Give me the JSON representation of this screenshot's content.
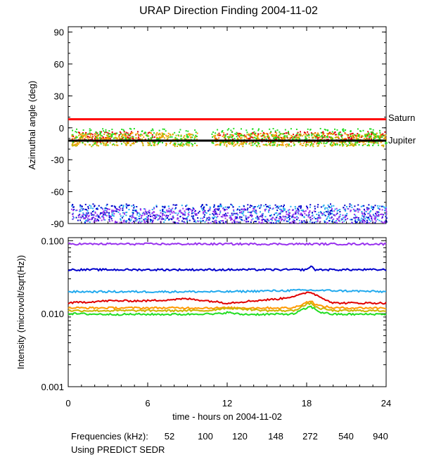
{
  "chart_data": [
    {
      "type": "scatter",
      "title": "URAP Direction Finding  2004-11-02",
      "ylabel": "Azimuthal angle (deg)",
      "xlim": [
        0,
        24
      ],
      "ylim": [
        -90,
        95
      ],
      "y_ticks": [
        90,
        60,
        30,
        0,
        -30,
        -60,
        -90
      ],
      "reference_lines": [
        {
          "name": "Saturn",
          "y": 8,
          "color": "#ff0000"
        },
        {
          "name": "Jupiter",
          "y": -12,
          "color": "#000000"
        }
      ],
      "series": [
        {
          "frequency_khz": 52,
          "color": "#e00000",
          "y_center": -8,
          "y_spread": 5,
          "segments": [
            [
              0.2,
              6.5
            ],
            [
              11,
              24
            ]
          ]
        },
        {
          "frequency_khz": 100,
          "color": "#ff9900",
          "y_center": -10,
          "y_spread": 6,
          "segments": [
            [
              0.2,
              24
            ]
          ]
        },
        {
          "frequency_khz": 120,
          "color": "#c8b400",
          "y_center": -11,
          "y_spread": 6,
          "segments": [
            [
              0.2,
              24
            ]
          ]
        },
        {
          "frequency_khz": 148,
          "color": "#22dd22",
          "y_center": -8,
          "y_spread": 8,
          "segments": [
            [
              0.2,
              24
            ]
          ]
        },
        {
          "frequency_khz": 272,
          "color": "#22aaee",
          "y_center": -80,
          "y_spread": 8,
          "segments": [
            [
              0.2,
              24
            ]
          ]
        },
        {
          "frequency_khz": 540,
          "color": "#0000cc",
          "y_center": -80,
          "y_spread": 9,
          "segments": [
            [
              0.2,
              24
            ]
          ]
        },
        {
          "frequency_khz": 940,
          "color": "#9933ee",
          "y_center": -82,
          "y_spread": 7,
          "segments": [
            [
              0.2,
              24
            ]
          ]
        }
      ]
    },
    {
      "type": "line",
      "ylabel": "Intensity (microvolt/sqrt(Hz))",
      "xlabel": "time - hours on 2004-11-02",
      "scale": "log",
      "xlim": [
        0,
        24
      ],
      "ylim": [
        0.001,
        0.11
      ],
      "x_ticks": [
        0,
        6,
        12,
        18,
        24
      ],
      "y_ticks": [
        "0.100",
        "0.010",
        "0.001"
      ],
      "series": [
        {
          "frequency_khz": 940,
          "color": "#9933ee",
          "x": [
            0,
            6,
            12,
            18,
            24
          ],
          "y": [
            0.09,
            0.09,
            0.09,
            0.09,
            0.09
          ]
        },
        {
          "frequency_khz": 540,
          "color": "#0000cc",
          "x": [
            0,
            6,
            12,
            18,
            18.3,
            18.6,
            24
          ],
          "y": [
            0.04,
            0.04,
            0.04,
            0.04,
            0.045,
            0.04,
            0.04
          ]
        },
        {
          "frequency_khz": 272,
          "color": "#22aaee",
          "x": [
            0,
            6,
            12,
            18,
            24
          ],
          "y": [
            0.02,
            0.02,
            0.02,
            0.021,
            0.02
          ]
        },
        {
          "frequency_khz": 52,
          "color": "#e00000",
          "x": [
            0,
            3,
            6,
            9,
            10.5,
            12,
            14,
            16,
            17.5,
            18.2,
            19,
            20,
            22,
            24
          ],
          "y": [
            0.014,
            0.015,
            0.015,
            0.016,
            0.015,
            0.014,
            0.015,
            0.016,
            0.018,
            0.02,
            0.017,
            0.014,
            0.014,
            0.014
          ]
        },
        {
          "frequency_khz": 100,
          "color": "#ff9900",
          "x": [
            0,
            3,
            6,
            9,
            10.5,
            12,
            15,
            17,
            18.3,
            18.8,
            20,
            22,
            24
          ],
          "y": [
            0.012,
            0.012,
            0.012,
            0.012,
            0.012,
            0.012,
            0.012,
            0.012,
            0.015,
            0.013,
            0.012,
            0.012,
            0.012
          ]
        },
        {
          "frequency_khz": 120,
          "color": "#c8b400",
          "x": [
            0,
            3,
            6,
            9,
            10.5,
            12,
            15,
            17,
            18.3,
            18.8,
            20,
            22,
            24
          ],
          "y": [
            0.011,
            0.011,
            0.011,
            0.011,
            0.011,
            0.012,
            0.011,
            0.011,
            0.014,
            0.012,
            0.011,
            0.011,
            0.011
          ]
        },
        {
          "frequency_khz": 148,
          "color": "#22dd22",
          "x": [
            0,
            3,
            6,
            9,
            10,
            11,
            12,
            13,
            15,
            17,
            18.3,
            19,
            20,
            22,
            24
          ],
          "y": [
            0.01,
            0.0098,
            0.0098,
            0.0098,
            0.01,
            0.0098,
            0.0104,
            0.0098,
            0.0098,
            0.0099,
            0.0125,
            0.0105,
            0.0098,
            0.0098,
            0.0099
          ]
        }
      ]
    }
  ],
  "footer": {
    "frequencies_label": "Frequencies (kHz):",
    "frequencies": [
      {
        "label": "52",
        "color": "#e00000"
      },
      {
        "label": "100",
        "color": "#ff9900"
      },
      {
        "label": "120",
        "color": "#c8b400"
      },
      {
        "label": "148",
        "color": "#22dd22"
      },
      {
        "label": "272",
        "color": "#22aaee"
      },
      {
        "label": "540",
        "color": "#0000cc"
      },
      {
        "label": "940",
        "color": "#9933ee"
      }
    ],
    "source_note": "Using PREDICT SEDR"
  }
}
